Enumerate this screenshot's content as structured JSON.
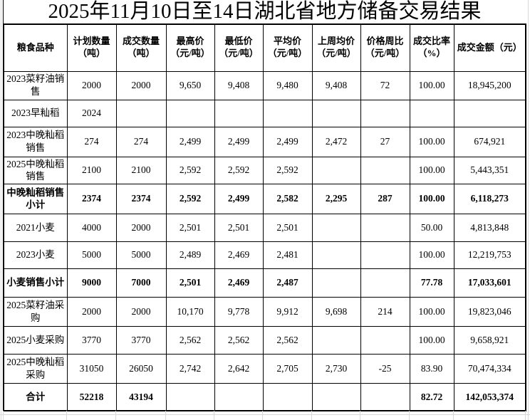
{
  "title": "2025年11月10日至14日湖北省地方储备交易结果",
  "table": {
    "columns": [
      {
        "label": "粮食品种",
        "sub": ""
      },
      {
        "label": "计划数量",
        "sub": "（吨）"
      },
      {
        "label": "成交数量",
        "sub": "（吨）"
      },
      {
        "label": "最高价",
        "sub": "（元/吨）"
      },
      {
        "label": "最低价",
        "sub": "（元/吨）"
      },
      {
        "label": "平均价",
        "sub": "（元/吨）"
      },
      {
        "label": "上周均价",
        "sub": "（元/吨）"
      },
      {
        "label": "价格周比",
        "sub": "（元/吨）"
      },
      {
        "label": "成交比率",
        "sub": "（%）"
      },
      {
        "label": "成交金额（元）",
        "sub": ""
      }
    ],
    "rows": [
      {
        "bold": false,
        "cells": [
          "2023菜籽油销售",
          "2000",
          "2000",
          "9,650",
          "9,408",
          "9,480",
          "9,408",
          "72",
          "100.00",
          "18,945,200"
        ]
      },
      {
        "bold": false,
        "cells": [
          "2023早籼稻",
          "2024",
          "",
          "",
          "",
          "",
          "",
          "",
          "",
          ""
        ]
      },
      {
        "bold": false,
        "cells": [
          "2023中晚籼稻销售",
          "274",
          "274",
          "2,499",
          "2,499",
          "2,499",
          "2,472",
          "27",
          "100.00",
          "674,921"
        ]
      },
      {
        "bold": false,
        "cells": [
          "2025中晚籼稻销售",
          "2100",
          "2100",
          "2,592",
          "2,592",
          "2,592",
          "",
          "",
          "100.00",
          "5,443,351"
        ]
      },
      {
        "bold": true,
        "cells": [
          "中晚籼稻销售小计",
          "2374",
          "2374",
          "2,592",
          "2,499",
          "2,582",
          "2,295",
          "287",
          "100.00",
          "6,118,273"
        ]
      },
      {
        "bold": false,
        "cells": [
          "2021小麦",
          "4000",
          "2000",
          "2,501",
          "2,501",
          "2,501",
          "",
          "",
          "50.00",
          "4,813,848"
        ]
      },
      {
        "bold": false,
        "cells": [
          "2023小麦",
          "5000",
          "5000",
          "2,489",
          "2,469",
          "2,481",
          "",
          "",
          "100.00",
          "12,219,753"
        ]
      },
      {
        "bold": true,
        "cells": [
          "小麦销售小计",
          "9000",
          "7000",
          "2,501",
          "2,469",
          "2,487",
          "",
          "",
          "77.78",
          "17,033,601"
        ]
      },
      {
        "bold": false,
        "cells": [
          "2025菜籽油采购",
          "2000",
          "2000",
          "10,170",
          "9,778",
          "9,912",
          "9,698",
          "214",
          "100.00",
          "19,823,046"
        ]
      },
      {
        "bold": false,
        "cells": [
          "2025小麦采购",
          "3770",
          "3770",
          "2,562",
          "2,562",
          "2,562",
          "",
          "",
          "100.00",
          "9,658,921"
        ]
      },
      {
        "bold": false,
        "cells": [
          "2025中晚籼稻采购",
          "31050",
          "26050",
          "2,742",
          "2,642",
          "2,705",
          "2,730",
          "-25",
          "83.90",
          "70,474,334"
        ]
      },
      {
        "bold": true,
        "cells": [
          "合计",
          "52218",
          "43194",
          "",
          "",
          "",
          "",
          "",
          "82.72",
          "142,053,374"
        ]
      }
    ]
  }
}
